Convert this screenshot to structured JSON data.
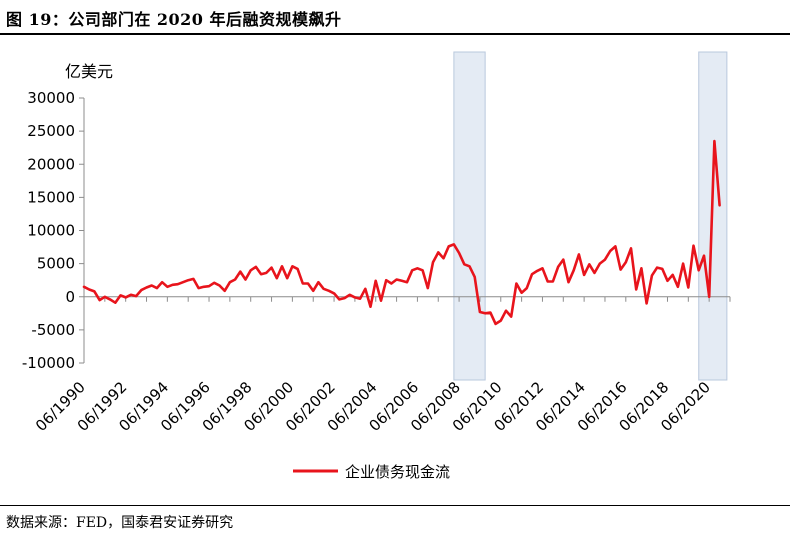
{
  "title": "图 19：公司部门在 2020 年后融资规模飙升",
  "source": "数据来源：FED，国泰君安证券研究",
  "chart_data": {
    "type": "line",
    "ylabel": "亿美元",
    "ylim": [
      -10000,
      30000
    ],
    "yticks": [
      30000,
      25000,
      20000,
      15000,
      10000,
      5000,
      0,
      -5000,
      -10000
    ],
    "xlim": [
      1990.25,
      2021.25
    ],
    "xticks": [
      "06/1990",
      "06/1992",
      "06/1994",
      "06/1996",
      "06/1998",
      "06/2000",
      "06/2002",
      "06/2004",
      "06/2006",
      "06/2008",
      "06/2010",
      "06/2012",
      "06/2014",
      "06/2016",
      "06/2018",
      "06/2020"
    ],
    "grid": false,
    "legend_position": "bottom",
    "shaded_periods": [
      [
        2008.0,
        2009.5
      ],
      [
        2019.75,
        2021.1
      ]
    ],
    "series": [
      {
        "name": "企业债务现金流",
        "color": "#e8141c",
        "points": [
          [
            1990.25,
            1500
          ],
          [
            1990.5,
            1100
          ],
          [
            1990.75,
            800
          ],
          [
            1991.0,
            -500
          ],
          [
            1991.25,
            0
          ],
          [
            1991.5,
            -400
          ],
          [
            1991.75,
            -900
          ],
          [
            1992.0,
            200
          ],
          [
            1992.25,
            -100
          ],
          [
            1992.5,
            300
          ],
          [
            1992.75,
            100
          ],
          [
            1993.0,
            1000
          ],
          [
            1993.25,
            1400
          ],
          [
            1993.5,
            1700
          ],
          [
            1993.75,
            1300
          ],
          [
            1994.0,
            2200
          ],
          [
            1994.25,
            1500
          ],
          [
            1994.5,
            1800
          ],
          [
            1994.75,
            1900
          ],
          [
            1995.0,
            2200
          ],
          [
            1995.25,
            2500
          ],
          [
            1995.5,
            2700
          ],
          [
            1995.75,
            1300
          ],
          [
            1996.0,
            1500
          ],
          [
            1996.25,
            1600
          ],
          [
            1996.5,
            2100
          ],
          [
            1996.75,
            1700
          ],
          [
            1997.0,
            900
          ],
          [
            1997.25,
            2200
          ],
          [
            1997.5,
            2600
          ],
          [
            1997.75,
            3800
          ],
          [
            1998.0,
            2600
          ],
          [
            1998.25,
            4000
          ],
          [
            1998.5,
            4500
          ],
          [
            1998.75,
            3400
          ],
          [
            1999.0,
            3600
          ],
          [
            1999.25,
            4400
          ],
          [
            1999.5,
            2800
          ],
          [
            1999.75,
            4600
          ],
          [
            2000.0,
            2800
          ],
          [
            2000.25,
            4600
          ],
          [
            2000.5,
            4200
          ],
          [
            2000.75,
            2000
          ],
          [
            2001.0,
            2000
          ],
          [
            2001.25,
            900
          ],
          [
            2001.5,
            2200
          ],
          [
            2001.75,
            1200
          ],
          [
            2002.0,
            900
          ],
          [
            2002.25,
            500
          ],
          [
            2002.5,
            -400
          ],
          [
            2002.75,
            -200
          ],
          [
            2003.0,
            300
          ],
          [
            2003.25,
            -100
          ],
          [
            2003.5,
            -300
          ],
          [
            2003.75,
            1200
          ],
          [
            2004.0,
            -1500
          ],
          [
            2004.25,
            2400
          ],
          [
            2004.5,
            -600
          ],
          [
            2004.75,
            2500
          ],
          [
            2005.0,
            2000
          ],
          [
            2005.25,
            2600
          ],
          [
            2005.5,
            2400
          ],
          [
            2005.75,
            2200
          ],
          [
            2006.0,
            4000
          ],
          [
            2006.25,
            4300
          ],
          [
            2006.5,
            4000
          ],
          [
            2006.75,
            1300
          ],
          [
            2007.0,
            5200
          ],
          [
            2007.25,
            6700
          ],
          [
            2007.5,
            5800
          ],
          [
            2007.75,
            7600
          ],
          [
            2008.0,
            7900
          ],
          [
            2008.25,
            6600
          ],
          [
            2008.5,
            4900
          ],
          [
            2008.75,
            4600
          ],
          [
            2009.0,
            3000
          ],
          [
            2009.25,
            -2300
          ],
          [
            2009.5,
            -2500
          ],
          [
            2009.75,
            -2400
          ],
          [
            2010.0,
            -4100
          ],
          [
            2010.25,
            -3600
          ],
          [
            2010.5,
            -2100
          ],
          [
            2010.75,
            -3000
          ],
          [
            2011.0,
            2000
          ],
          [
            2011.25,
            600
          ],
          [
            2011.5,
            1300
          ],
          [
            2011.75,
            3400
          ],
          [
            2012.0,
            3900
          ],
          [
            2012.25,
            4300
          ],
          [
            2012.5,
            2300
          ],
          [
            2012.75,
            2300
          ],
          [
            2013.0,
            4500
          ],
          [
            2013.25,
            5600
          ],
          [
            2013.5,
            2200
          ],
          [
            2013.75,
            4000
          ],
          [
            2014.0,
            6400
          ],
          [
            2014.25,
            3300
          ],
          [
            2014.5,
            4900
          ],
          [
            2014.75,
            3600
          ],
          [
            2015.0,
            5000
          ],
          [
            2015.25,
            5600
          ],
          [
            2015.5,
            6900
          ],
          [
            2015.75,
            7600
          ],
          [
            2016.0,
            4100
          ],
          [
            2016.25,
            5200
          ],
          [
            2016.5,
            7300
          ],
          [
            2016.75,
            1100
          ],
          [
            2017.0,
            4300
          ],
          [
            2017.25,
            -1000
          ],
          [
            2017.5,
            3200
          ],
          [
            2017.75,
            4400
          ],
          [
            2018.0,
            4200
          ],
          [
            2018.25,
            2400
          ],
          [
            2018.5,
            3300
          ],
          [
            2018.75,
            1500
          ],
          [
            2019.0,
            5000
          ],
          [
            2019.25,
            1400
          ],
          [
            2019.5,
            7700
          ],
          [
            2019.75,
            4000
          ],
          [
            2020.0,
            6200
          ],
          [
            2020.25,
            0
          ],
          [
            2020.5,
            23500
          ],
          [
            2020.75,
            13800
          ]
        ]
      }
    ]
  }
}
